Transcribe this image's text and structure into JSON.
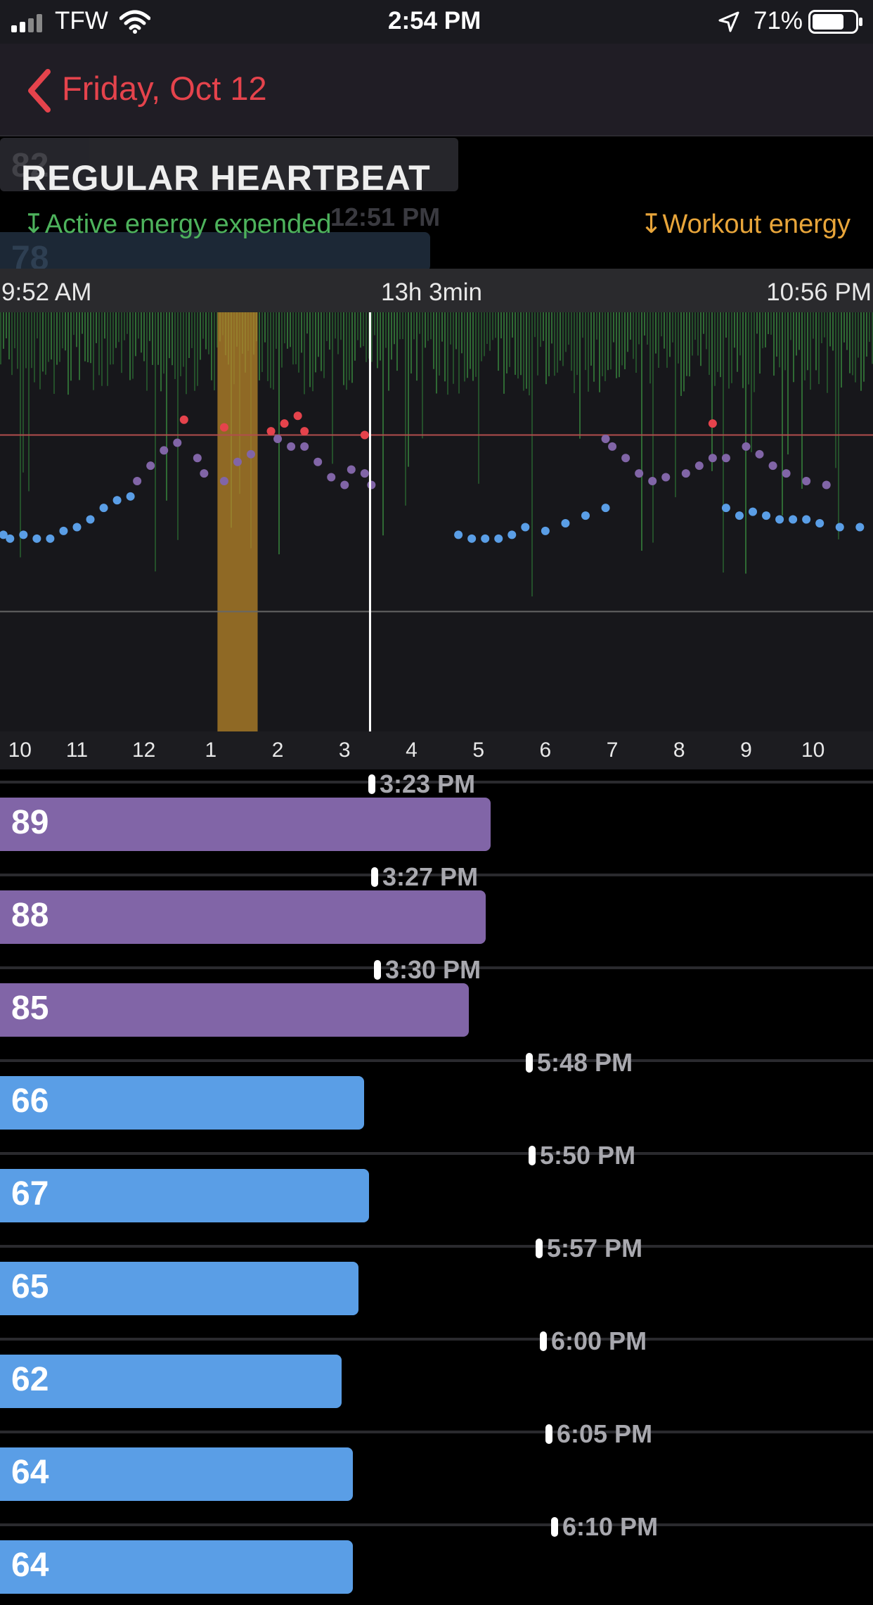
{
  "status_bar": {
    "carrier": "TFW",
    "time": "2:54 PM",
    "battery": "71%"
  },
  "nav": {
    "back_label": "Friday, Oct 12"
  },
  "ghost": {
    "value_a": "82",
    "value_b": "78",
    "time": "12:51 PM"
  },
  "section": {
    "title": "REGULAR HEARTBEAT"
  },
  "legend": {
    "active": "↧Active energy expended",
    "workout": "↧Workout energy"
  },
  "range": {
    "start": "9:52 AM",
    "duration": "13h 3min",
    "end": "10:56 PM"
  },
  "colors": {
    "accent_red": "#e5434c",
    "active_green": "#4db25c",
    "workout_orange": "#e8a53a",
    "purple": "#8165a7",
    "blue": "#5a9ee6"
  },
  "chart_data": {
    "type": "scatter",
    "xlabel": "",
    "ylabel": "",
    "x_ticks": [
      "10",
      "11",
      "12",
      "1",
      "2",
      "3",
      "4",
      "5",
      "6",
      "7",
      "8",
      "9",
      "10"
    ],
    "cursor_time": "3:23 PM",
    "series": [
      {
        "color": "#5a9ee6",
        "points": [
          [
            9.9,
            72
          ],
          [
            10.0,
            71
          ],
          [
            10.2,
            72
          ],
          [
            10.4,
            71
          ],
          [
            10.6,
            71
          ],
          [
            10.8,
            73
          ],
          [
            11.0,
            74
          ],
          [
            11.2,
            76
          ],
          [
            11.4,
            79
          ],
          [
            11.6,
            81
          ],
          [
            11.8,
            82
          ],
          [
            16.7,
            72
          ],
          [
            16.9,
            71
          ],
          [
            17.1,
            71
          ],
          [
            17.3,
            71
          ],
          [
            17.5,
            72
          ],
          [
            17.7,
            74
          ],
          [
            18.0,
            73
          ],
          [
            18.3,
            75
          ],
          [
            18.6,
            77
          ],
          [
            18.9,
            79
          ],
          [
            20.7,
            79
          ],
          [
            20.9,
            77
          ],
          [
            21.1,
            78
          ],
          [
            21.3,
            77
          ],
          [
            21.5,
            76
          ],
          [
            21.7,
            76
          ],
          [
            21.9,
            76
          ],
          [
            22.1,
            75
          ],
          [
            22.4,
            74
          ],
          [
            22.7,
            74
          ]
        ]
      },
      {
        "color": "#8165a7",
        "points": [
          [
            11.9,
            86
          ],
          [
            12.1,
            90
          ],
          [
            12.3,
            94
          ],
          [
            12.5,
            96
          ],
          [
            12.8,
            92
          ],
          [
            12.9,
            88
          ],
          [
            13.2,
            86
          ],
          [
            13.4,
            91
          ],
          [
            13.6,
            93
          ],
          [
            14.0,
            97
          ],
          [
            14.2,
            95
          ],
          [
            14.4,
            95
          ],
          [
            14.6,
            91
          ],
          [
            14.8,
            87
          ],
          [
            15.0,
            85
          ],
          [
            15.1,
            89
          ],
          [
            15.3,
            88
          ],
          [
            15.4,
            85
          ],
          [
            18.9,
            97
          ],
          [
            19.0,
            95
          ],
          [
            19.2,
            92
          ],
          [
            19.4,
            88
          ],
          [
            19.6,
            86
          ],
          [
            19.8,
            87
          ],
          [
            20.1,
            88
          ],
          [
            20.3,
            90
          ],
          [
            20.5,
            92
          ],
          [
            20.7,
            92
          ],
          [
            21.0,
            95
          ],
          [
            21.2,
            93
          ],
          [
            21.4,
            90
          ],
          [
            21.6,
            88
          ],
          [
            21.9,
            86
          ],
          [
            22.2,
            85
          ]
        ]
      },
      {
        "color": "#e5434c",
        "points": [
          [
            12.6,
            102
          ],
          [
            13.2,
            100
          ],
          [
            13.9,
            99
          ],
          [
            14.1,
            101
          ],
          [
            14.3,
            103
          ],
          [
            14.4,
            99
          ],
          [
            15.3,
            98
          ],
          [
            20.5,
            101
          ]
        ]
      }
    ],
    "workout_interval": [
      13.1,
      13.7
    ],
    "high_threshold": 98,
    "low_threshold": 52
  },
  "readings": [
    {
      "value": "89",
      "time": "3:23 PM",
      "color": "#8165a7",
      "frac": 0.562
    },
    {
      "value": "88",
      "time": "3:27 PM",
      "color": "#8165a7",
      "frac": 0.556
    },
    {
      "value": "85",
      "time": "3:30 PM",
      "color": "#8165a7",
      "frac": 0.537
    },
    {
      "value": "66",
      "time": "5:48 PM",
      "color": "#5a9ee6",
      "frac": 0.417
    },
    {
      "value": "67",
      "time": "5:50 PM",
      "color": "#5a9ee6",
      "frac": 0.423
    },
    {
      "value": "65",
      "time": "5:57 PM",
      "color": "#5a9ee6",
      "frac": 0.411
    },
    {
      "value": "62",
      "time": "6:00 PM",
      "color": "#5a9ee6",
      "frac": 0.391
    },
    {
      "value": "64",
      "time": "6:05 PM",
      "color": "#5a9ee6",
      "frac": 0.404
    },
    {
      "value": "64",
      "time": "6:10 PM",
      "color": "#5a9ee6",
      "frac": 0.404
    }
  ]
}
